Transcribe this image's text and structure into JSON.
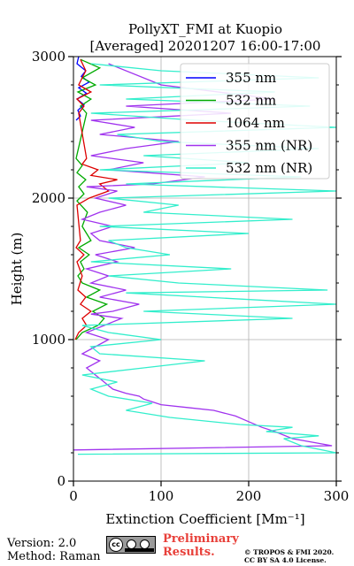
{
  "chart_data": {
    "type": "line",
    "title": "PollyXT_FMI at Kuopio",
    "subtitle": "[Averaged] 20201207 16:00-17:00",
    "xlabel": "Extinction Coefficient [Mm⁻¹]",
    "ylabel": "Height (m)",
    "xlim": [
      0,
      300
    ],
    "ylim": [
      0,
      3000
    ],
    "x_ticks": [
      0,
      100,
      200,
      300
    ],
    "y_ticks": [
      0,
      1000,
      2000,
      3000
    ],
    "grid": true,
    "legend_position": "top-right",
    "series": [
      {
        "name": "355 nm",
        "color": "#0000ff",
        "x": [
          3,
          8,
          5,
          12,
          4,
          15,
          6,
          18,
          9,
          14,
          4,
          6
        ],
        "y": [
          2550,
          2580,
          2620,
          2660,
          2700,
          2740,
          2780,
          2820,
          2860,
          2900,
          2950,
          3000
        ]
      },
      {
        "name": "532 nm",
        "color": "#00aa00",
        "x": [
          3,
          10,
          28,
          35,
          22,
          38,
          15,
          30,
          10,
          5,
          12,
          8,
          18,
          6,
          20,
          10,
          16,
          4,
          12,
          6,
          14,
          4,
          10,
          3,
          15,
          8,
          20,
          5,
          25,
          10,
          30,
          8
        ],
        "y": [
          1000,
          1050,
          1100,
          1150,
          1200,
          1250,
          1300,
          1350,
          1400,
          1450,
          1500,
          1550,
          1600,
          1650,
          1700,
          1800,
          1900,
          1980,
          2030,
          2080,
          2130,
          2180,
          2230,
          2280,
          2600,
          2650,
          2700,
          2750,
          2800,
          2850,
          2920,
          2980
        ]
      },
      {
        "name": "1064 nm",
        "color": "#dd0000",
        "x": [
          2,
          6,
          15,
          10,
          20,
          8,
          14,
          5,
          10,
          4,
          12,
          3,
          8,
          4,
          18,
          40,
          30,
          50,
          20,
          28,
          10,
          15,
          6,
          12,
          4,
          20,
          6,
          14,
          8
        ],
        "y": [
          1000,
          1050,
          1100,
          1150,
          1200,
          1250,
          1300,
          1350,
          1450,
          1550,
          1600,
          1650,
          1700,
          1950,
          2000,
          2050,
          2100,
          2130,
          2160,
          2200,
          2240,
          2280,
          2600,
          2650,
          2700,
          2750,
          2800,
          2900,
          2980
        ]
      },
      {
        "name": "355 nm (NR)",
        "color": "#a033ee",
        "x": [
          0,
          295,
          250,
          230,
          215,
          200,
          185,
          160,
          130,
          100,
          90,
          80,
          75,
          60,
          45,
          35,
          25,
          15,
          30,
          10,
          25,
          40,
          15,
          35,
          55,
          20,
          45,
          75,
          30,
          60,
          20,
          40,
          15,
          50,
          25,
          70,
          30,
          20,
          45,
          10,
          30,
          60,
          25,
          50,
          15,
          90,
          150,
          40,
          80,
          20,
          60,
          120,
          30,
          70,
          20,
          180,
          60,
          230,
          100,
          40
        ],
        "y": [
          220,
          250,
          300,
          350,
          380,
          420,
          460,
          500,
          520,
          540,
          560,
          580,
          600,
          620,
          650,
          700,
          750,
          800,
          850,
          900,
          950,
          1000,
          1050,
          1100,
          1150,
          1180,
          1200,
          1250,
          1300,
          1350,
          1400,
          1450,
          1500,
          1550,
          1600,
          1650,
          1700,
          1750,
          1800,
          1850,
          1900,
          1950,
          2000,
          2050,
          2080,
          2100,
          2150,
          2200,
          2250,
          2300,
          2350,
          2400,
          2450,
          2500,
          2550,
          2600,
          2650,
          2700,
          2800,
          2950
        ]
      },
      {
        "name": "532 nm (NR)",
        "color": "#33eecc",
        "x": [
          5,
          300,
          260,
          240,
          280,
          220,
          250,
          190,
          110,
          60,
          90,
          40,
          20,
          50,
          10,
          80,
          150,
          30,
          20,
          100,
          40,
          10,
          250,
          80,
          300,
          150,
          60,
          290,
          120,
          40,
          180,
          20,
          110,
          60,
          40,
          200,
          30,
          250,
          80,
          120,
          40,
          300,
          60,
          260,
          30,
          200,
          80,
          280,
          100,
          50,
          300,
          140,
          20,
          270,
          60,
          230,
          30,
          280,
          100,
          20
        ],
        "y": [
          190,
          200,
          250,
          300,
          320,
          350,
          380,
          400,
          450,
          500,
          550,
          600,
          650,
          700,
          750,
          800,
          850,
          900,
          950,
          1000,
          1050,
          1100,
          1150,
          1200,
          1250,
          1300,
          1330,
          1350,
          1400,
          1450,
          1500,
          1550,
          1600,
          1650,
          1700,
          1750,
          1800,
          1850,
          1900,
          1950,
          2000,
          2050,
          2100,
          2150,
          2200,
          2250,
          2300,
          2350,
          2400,
          2450,
          2500,
          2550,
          2600,
          2650,
          2700,
          2750,
          2800,
          2850,
          2900,
          2950
        ]
      }
    ]
  },
  "footer": {
    "version": "Version: 2.0",
    "method": "Method: Raman",
    "preliminary_line1": "Preliminary",
    "preliminary_line2": "Results.",
    "copyright_line1": "© TROPOS & FMI 2020.",
    "copyright_line2": "CC BY SA 4.0 License."
  },
  "license_badge": {
    "icon": "cc-by-sa-icon",
    "background": "#9a9a9a"
  }
}
